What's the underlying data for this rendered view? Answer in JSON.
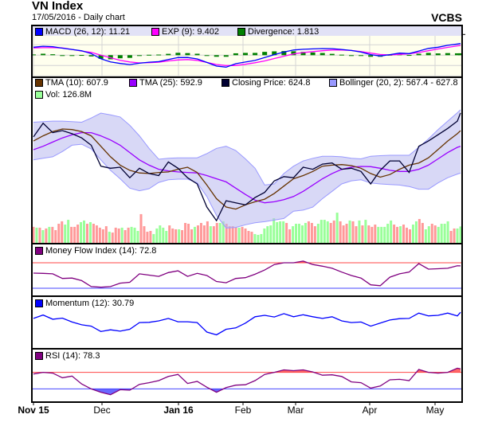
{
  "header": {
    "title": "VN Index",
    "subtitle": "17/05/2016 - Daily chart",
    "brand": "VCBS"
  },
  "colors": {
    "legend_band": "#e2e2f6",
    "plot_bg": "#ffffee",
    "grid": "#d4d4d4",
    "macd": "#0000ff",
    "signal": "#ff00ff",
    "divergence": "#008000",
    "tma10": "#663300",
    "tma25": "#9900ff",
    "close": "#000033",
    "bollinger": "#9999ff",
    "vol_up": "#99ff99",
    "vol_down": "#ff9999",
    "mfi": "#800080",
    "momentum": "#0000ff",
    "rsi": "#800080",
    "overbought": "#ff4444",
    "oversold": "#4444ff"
  },
  "legends": {
    "macd": "MACD (26, 12): 11.21",
    "signal": "EXP (9): 9.402",
    "divergence": "Divergence: 1.813",
    "tma10": "TMA (10): 607.9",
    "tma25": "TMA (25): 592.9",
    "close": "Closing Price: 624.8",
    "bollinger": "Bollinger (20, 2): 567.4 - 627.8",
    "volume": "Vol: 126.8M",
    "mfi": "Money Flow Index (14): 72.8",
    "momentum": "Momentum (12): 30.79",
    "rsi": "RSI (14): 78.3"
  },
  "chart_data": {
    "type": "line",
    "x_ticks": [
      {
        "label": "Nov 15",
        "date": "2015-11-02"
      },
      {
        "label": "Dec",
        "date": "2015-12-01"
      },
      {
        "label": "Jan 16",
        "date": "2016-01-04"
      },
      {
        "label": "Feb",
        "date": "2016-02-01"
      },
      {
        "label": "Mar",
        "date": "2016-03-01"
      },
      {
        "label": "Apr",
        "date": "2016-04-01"
      },
      {
        "label": "May",
        "date": "2016-05-03"
      }
    ],
    "x": [
      "2015-11-02",
      "2015-11-05",
      "2015-11-10",
      "2015-11-13",
      "2015-11-18",
      "2015-11-23",
      "2015-11-26",
      "2015-12-01",
      "2015-12-04",
      "2015-12-09",
      "2015-12-14",
      "2015-12-17",
      "2015-12-22",
      "2015-12-25",
      "2015-12-30",
      "2016-01-05",
      "2016-01-08",
      "2016-01-13",
      "2016-01-18",
      "2016-01-21",
      "2016-01-26",
      "2016-01-29",
      "2016-02-03",
      "2016-02-15",
      "2016-02-18",
      "2016-02-23",
      "2016-02-26",
      "2016-03-02",
      "2016-03-07",
      "2016-03-10",
      "2016-03-15",
      "2016-03-18",
      "2016-03-23",
      "2016-03-28",
      "2016-03-31",
      "2016-04-05",
      "2016-04-08",
      "2016-04-13",
      "2016-04-19",
      "2016-04-22",
      "2016-04-27",
      "2016-05-03",
      "2016-05-06",
      "2016-05-11",
      "2016-05-16",
      "2016-05-17"
    ],
    "panels": [
      {
        "id": "macd",
        "ylim": [
          -20,
          20
        ],
        "yticks": [
          20,
          10,
          0,
          -10,
          -20
        ],
        "series": {
          "macd": [
            7.7,
            8.6,
            8.2,
            6.8,
            5.5,
            4.2,
            1.5,
            -3.5,
            -6.5,
            -8,
            -9.1,
            -7.8,
            -6.8,
            -6.2,
            -4.2,
            -2.3,
            -2.2,
            -3.6,
            -7,
            -10.5,
            -11.5,
            -8.2,
            -6.6,
            -5.1,
            -2.3,
            0.5,
            3,
            5,
            5.7,
            6.1,
            6.4,
            6.3,
            5.5,
            4.5,
            3,
            0.5,
            -0.8,
            0.5,
            2,
            1.5,
            4,
            6.5,
            7.7,
            9.5,
            10.8,
            11.21
          ],
          "signal": [
            7,
            7.2,
            7.3,
            7,
            5.5,
            4,
            2.7,
            0,
            -2.5,
            -5,
            -6.5,
            -7.5,
            -7.2,
            -6.8,
            -5.5,
            -4.6,
            -4.2,
            -5,
            -7,
            -9,
            -10,
            -10,
            -8.8,
            -7.3,
            -5.5,
            -3.2,
            -1,
            1.2,
            2.5,
            3.5,
            4.3,
            5,
            5,
            4.5,
            3.5,
            2,
            0.7,
            0.2,
            0.8,
            1.3,
            2.6,
            4.3,
            6,
            7.5,
            9,
            9.402
          ],
          "divergence": [
            0.7,
            1.4,
            0.9,
            -0.2,
            0,
            0.2,
            -1.2,
            -3.5,
            -4,
            -3,
            -2.6,
            -0.3,
            0.4,
            0.6,
            1.3,
            2.3,
            2,
            1.4,
            0,
            -1.5,
            -1.5,
            1.8,
            2.2,
            2.2,
            3.2,
            3.7,
            4,
            3.8,
            3.2,
            2.6,
            2.1,
            1.3,
            0.5,
            0,
            -0.5,
            -1.5,
            -1.5,
            0.3,
            1.2,
            0.2,
            1.4,
            2.2,
            1.7,
            2,
            1.8,
            1.813
          ]
        }
      },
      {
        "id": "price",
        "ylim": [
          500,
          640
        ],
        "yticks": [
          640,
          620,
          600,
          580,
          560,
          540,
          520,
          500
        ],
        "series": {
          "close": [
            602,
            615,
            606,
            608,
            605,
            601,
            594,
            574,
            572,
            573,
            563,
            572,
            567,
            565,
            578,
            572,
            563,
            557,
            535,
            522,
            541,
            539,
            537,
            544,
            549,
            560,
            564,
            563,
            573,
            571,
            576,
            577,
            571,
            572,
            569,
            557,
            570,
            579,
            579,
            568,
            593,
            598,
            604,
            610,
            617,
            624.8
          ],
          "tma10": [
            598,
            603,
            607,
            609.5,
            609,
            607,
            603,
            593,
            583,
            575,
            570,
            567.5,
            567,
            568,
            568.5,
            571,
            573,
            568,
            556,
            543,
            535,
            533,
            537,
            540,
            542.5,
            548,
            555,
            562,
            565,
            569,
            574,
            575,
            575.5,
            574.5,
            572,
            567,
            563.5,
            566,
            571,
            575,
            577,
            582,
            590,
            598,
            605,
            607.9
          ],
          "tma25": [
            589.7,
            593,
            597,
            601,
            604,
            606,
            606,
            603,
            599,
            594,
            587,
            580,
            575,
            571,
            569.5,
            568.5,
            568,
            567.5,
            565,
            562,
            559,
            553,
            547,
            541.5,
            539,
            540,
            542,
            545,
            550,
            556,
            562,
            567,
            571,
            573,
            573.8,
            573.5,
            572,
            570,
            569,
            569,
            571,
            575,
            581,
            587,
            592,
            592.9
          ],
          "bollinger_upper": [
            616,
            616.5,
            617,
            617,
            616.5,
            616,
            620,
            624.7,
            623,
            621,
            613,
            603,
            591,
            580.6,
            581.5,
            582,
            582,
            582,
            586,
            591,
            593,
            589,
            581,
            572,
            556,
            557,
            567,
            574,
            579,
            581.5,
            583.5,
            583.5,
            583,
            581.5,
            581,
            583.5,
            584,
            584.4,
            584.4,
            584.4,
            592,
            600,
            609,
            617,
            625,
            627.8
          ],
          "bollinger_lower": [
            580,
            581.5,
            583,
            588,
            594,
            595,
            590.5,
            580,
            570,
            562,
            553,
            550.5,
            552.5,
            558.5,
            561,
            561.6,
            561.6,
            558,
            545,
            527,
            515,
            515.5,
            518,
            520,
            521,
            522.5,
            524,
            531,
            532,
            535,
            543,
            550,
            557,
            560,
            561,
            558,
            557,
            556.5,
            556,
            554.5,
            552,
            552,
            558,
            563,
            566.5,
            567.4
          ]
        },
        "volume": {
          "unit": "M",
          "yticks": [
            "300M",
            "200M",
            "100M",
            "0M"
          ],
          "ylim": [
            0,
            300
          ],
          "daily": [
            124,
            118,
            118,
            100,
            112,
            124,
            124,
            100,
            147,
            165,
            141,
            176,
            124,
            124,
            141,
            159,
            171,
            147,
            159,
            147,
            135,
            118,
            106,
            129,
            88,
            82,
            118,
            112,
            118,
            100,
            118,
            124,
            118,
            94,
            218,
            129,
            88,
            94,
            71,
            112,
            135,
            118,
            94,
            135,
            112,
            106,
            106,
            100,
            153,
            147,
            106,
            124,
            135,
            153,
            135,
            165,
            129,
            129,
            153,
            153,
            165,
            147,
            129,
            129,
            118,
            118,
            124,
            112,
            94,
            88,
            71,
            65,
            71,
            112,
            129,
            135,
            188,
            159,
            165,
            165,
            153,
            106,
            129,
            147,
            147,
            135,
            153,
            165,
            153,
            129,
            147,
            176,
            176,
            165,
            153,
            171,
            229,
            165,
            135,
            147,
            171,
            165,
            129,
            171,
            135,
            176,
            135,
            124,
            141,
            124,
            124,
            124,
            147,
            171,
            141,
            124,
            129,
            141,
            118,
            106,
            141,
            165,
            182,
            153,
            106,
            129,
            147,
            135,
            124,
            147,
            147,
            165,
            94,
            112,
            112,
            127
          ],
          "direction": "dudududddduuddduududddddudddudduuudddduuuuudddudddduddddudduuddddudddduuuuuuuuuudduuuuuddduuuudduddduddududdduuuuudduddduudduudduuuudduu"
        }
      },
      {
        "id": "mfi",
        "ylim": [
          0,
          100
        ],
        "yticks": [
          80,
          50,
          20
        ],
        "thresholds": {
          "upper": 80,
          "lower": 20
        },
        "series": {
          "mfi": [
            55.6,
            55,
            54,
            43,
            44,
            38,
            24,
            22.5,
            24,
            32,
            34,
            54,
            51,
            48,
            57,
            61,
            48,
            55,
            50,
            36,
            33,
            43,
            45,
            53,
            63,
            76,
            80,
            80,
            84,
            76,
            72,
            67,
            58,
            50,
            44,
            28,
            26,
            46,
            54,
            58,
            78,
            65,
            66,
            67,
            73,
            72.8
          ]
        }
      },
      {
        "id": "momentum",
        "ylim": [
          -100,
          75
        ],
        "yticks": [
          50,
          0,
          -50,
          -100
        ],
        "series": {
          "momentum": [
            9,
            21,
            6,
            10,
            -4,
            -14,
            -19,
            -38,
            -32,
            -37,
            -30,
            -6,
            -5,
            0,
            9,
            -3,
            -3,
            -6,
            -40,
            -50,
            -30,
            -25,
            -8,
            15,
            20,
            14,
            26,
            15,
            22,
            15,
            9,
            15,
            0,
            -6,
            -4,
            -19,
            -8,
            3,
            8,
            9,
            28,
            18,
            20,
            28,
            18,
            30.79
          ]
        }
      },
      {
        "id": "rsi",
        "ylim": [
          0,
          100
        ],
        "yticks": [
          100,
          70,
          30,
          0
        ],
        "thresholds": {
          "upper": 70,
          "lower": 30
        },
        "series": {
          "rsi": [
            66,
            70,
            68,
            57,
            61,
            42,
            30,
            22,
            16,
            28,
            27,
            41,
            45,
            50,
            60,
            65,
            43,
            48,
            34,
            22,
            33,
            39,
            40,
            50,
            65,
            70,
            76,
            74,
            76,
            71,
            63,
            64,
            60,
            47,
            45,
            32,
            37,
            52,
            53,
            50,
            77,
            70,
            68,
            70,
            80,
            78.3
          ]
        }
      }
    ]
  }
}
